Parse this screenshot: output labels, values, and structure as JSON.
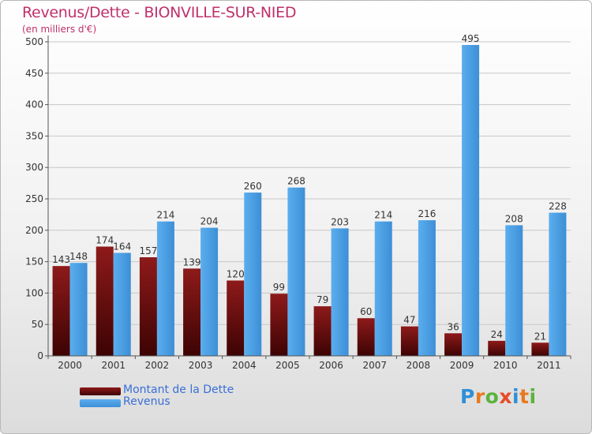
{
  "title": "Revenus/Dette - BIONVILLE-SUR-NIED",
  "subtitle": "(en milliers d'€)",
  "colors": {
    "dette": "#6b0a0a",
    "revenus": "#4aa0e6",
    "title": "#c0306a",
    "grid": "#cccccc"
  },
  "legend": [
    {
      "label": "Montant de la Dette",
      "color": "#6b0a0a"
    },
    {
      "label": "Revenus",
      "color": "#4aa0e6"
    }
  ],
  "logo": {
    "letters": [
      "P",
      "r",
      "o",
      "x",
      "i",
      "t",
      "i"
    ],
    "colors": [
      "#2f8fd8",
      "#e8791e",
      "#5bb33d",
      "#e84a2a",
      "#2f8fd8",
      "#e8791e",
      "#5bb33d"
    ]
  },
  "chart_data": {
    "type": "bar",
    "categories": [
      "2000",
      "2001",
      "2002",
      "2003",
      "2004",
      "2005",
      "2006",
      "2007",
      "2008",
      "2009",
      "2010",
      "2011"
    ],
    "series": [
      {
        "name": "Montant de la Dette",
        "values": [
          143,
          174,
          157,
          139,
          120,
          99,
          79,
          60,
          47,
          36,
          24,
          21
        ]
      },
      {
        "name": "Revenus",
        "values": [
          148,
          164,
          214,
          204,
          260,
          268,
          203,
          214,
          216,
          495,
          208,
          228
        ]
      }
    ],
    "yticks": [
      0,
      50,
      100,
      150,
      200,
      250,
      300,
      350,
      400,
      450,
      500
    ],
    "ylim": [
      0,
      500
    ],
    "grid": true,
    "legend_position": "bottom-left"
  }
}
